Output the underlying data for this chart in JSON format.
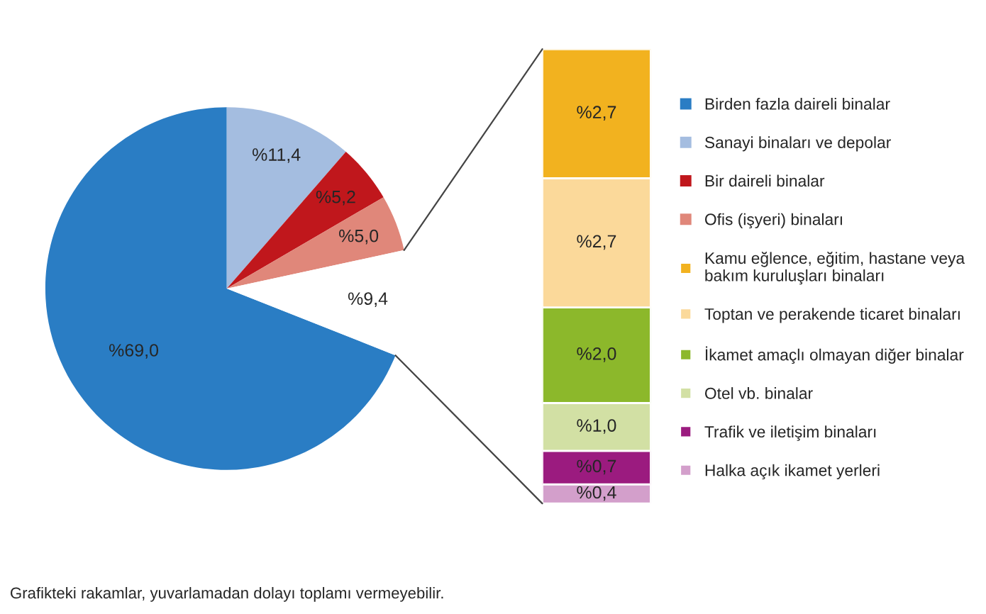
{
  "chart_data": [
    {
      "type": "pie",
      "categories": [
        "Birden fazla daireli binalar",
        "Sanayi binaları ve depolar",
        "Bir daireli binalar",
        "Ofis (işyeri) binaları",
        null
      ],
      "values": [
        69.0,
        11.4,
        5.2,
        5.0,
        9.4
      ],
      "colors": [
        "#2a7dc4",
        "#a4bde0",
        "#c0171c",
        "#e0877a",
        "#ffffff"
      ],
      "value_labels": [
        "%69,0",
        "%11,4",
        "%5,2",
        "%5,0",
        "%9,4"
      ],
      "legend": "right",
      "annotations": [
        "Grafikteki rakamlar, yuvarlamadan dolayı toplamı vermeyebilir."
      ]
    },
    {
      "type": "bar",
      "stacked": true,
      "categories": [
        null
      ],
      "legend": "right",
      "series": [
        {
          "name": "Halka açık ikamet yerleri",
          "color": "#d39fcb",
          "values": [
            0.4
          ],
          "value_labels": [
            "%0,4"
          ]
        },
        {
          "name": "Trafik ve iletişim binaları",
          "color": "#9b1b7f",
          "values": [
            0.7
          ],
          "value_labels": [
            "%0,7"
          ]
        },
        {
          "name": "Otel vb. binalar",
          "color": "#d2e0a4",
          "values": [
            1.0
          ],
          "value_labels": [
            "%1,0"
          ]
        },
        {
          "name": "İkamet amaçlı olmayan diğer binalar",
          "color": "#8cb82b",
          "values": [
            2.0
          ],
          "value_labels": [
            "%2,0"
          ]
        },
        {
          "name": "Toptan ve perakende ticaret binaları",
          "color": "#fbd99a",
          "values": [
            2.7
          ],
          "value_labels": [
            "%2,7"
          ]
        },
        {
          "name": "Kamu eğlence, eğitim, hastane veya\nbakım kuruluşları binaları",
          "color": "#f2b21f",
          "values": [
            2.7
          ],
          "value_labels": [
            "%2,7"
          ]
        }
      ]
    }
  ]
}
